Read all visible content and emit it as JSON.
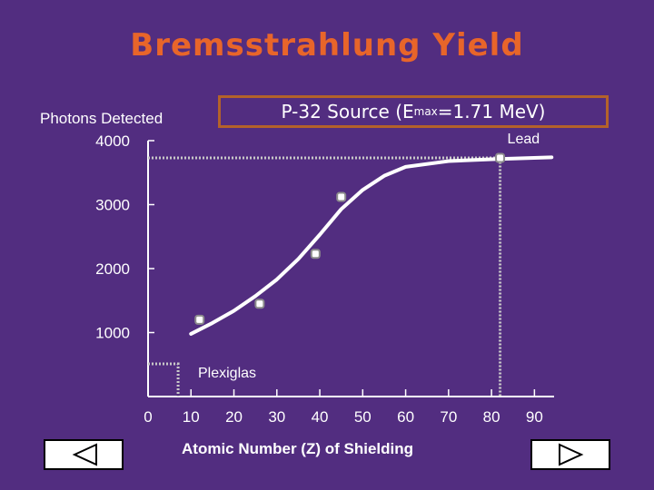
{
  "slide": {
    "title": "Bremsstrahlung Yield",
    "source_label_prefix": "P-32 Source (E",
    "source_label_sub": "max",
    "source_label_suffix": "=1.71 MeV)",
    "colors": {
      "background": "#522d80",
      "title": "#e8652a",
      "box_border": "#b4622a",
      "plot": "#ffffff"
    },
    "nav": {
      "prev_icon": "triangle-left-icon",
      "next_icon": "triangle-right-icon"
    }
  },
  "chart_data": {
    "type": "scatter",
    "title": "Bremsstrahlung Yield",
    "ylabel": "Photons Detected",
    "xlabel": "Atomic Number (Z) of Shielding",
    "xlim": [
      0,
      95
    ],
    "ylim": [
      0,
      4000
    ],
    "xticks": [
      0,
      10,
      20,
      30,
      40,
      50,
      60,
      70,
      80,
      90
    ],
    "yticks": [
      1000,
      2000,
      3000,
      4000
    ],
    "grid": false,
    "points": [
      {
        "x": 12,
        "y": 1200
      },
      {
        "x": 26,
        "y": 1450
      },
      {
        "x": 39,
        "y": 2230
      },
      {
        "x": 45,
        "y": 3120
      },
      {
        "x": 82,
        "y": 3730
      }
    ],
    "curve": [
      {
        "x": 10,
        "y": 980
      },
      {
        "x": 15,
        "y": 1150
      },
      {
        "x": 20,
        "y": 1340
      },
      {
        "x": 25,
        "y": 1570
      },
      {
        "x": 30,
        "y": 1830
      },
      {
        "x": 35,
        "y": 2150
      },
      {
        "x": 40,
        "y": 2530
      },
      {
        "x": 45,
        "y": 2930
      },
      {
        "x": 50,
        "y": 3230
      },
      {
        "x": 55,
        "y": 3450
      },
      {
        "x": 60,
        "y": 3590
      },
      {
        "x": 70,
        "y": 3680
      },
      {
        "x": 80,
        "y": 3710
      },
      {
        "x": 94,
        "y": 3740
      }
    ],
    "annotations": [
      {
        "text": "Plexiglas",
        "x": 7,
        "y": 510
      },
      {
        "text": "Lead",
        "x": 82,
        "y": 3730
      }
    ]
  }
}
